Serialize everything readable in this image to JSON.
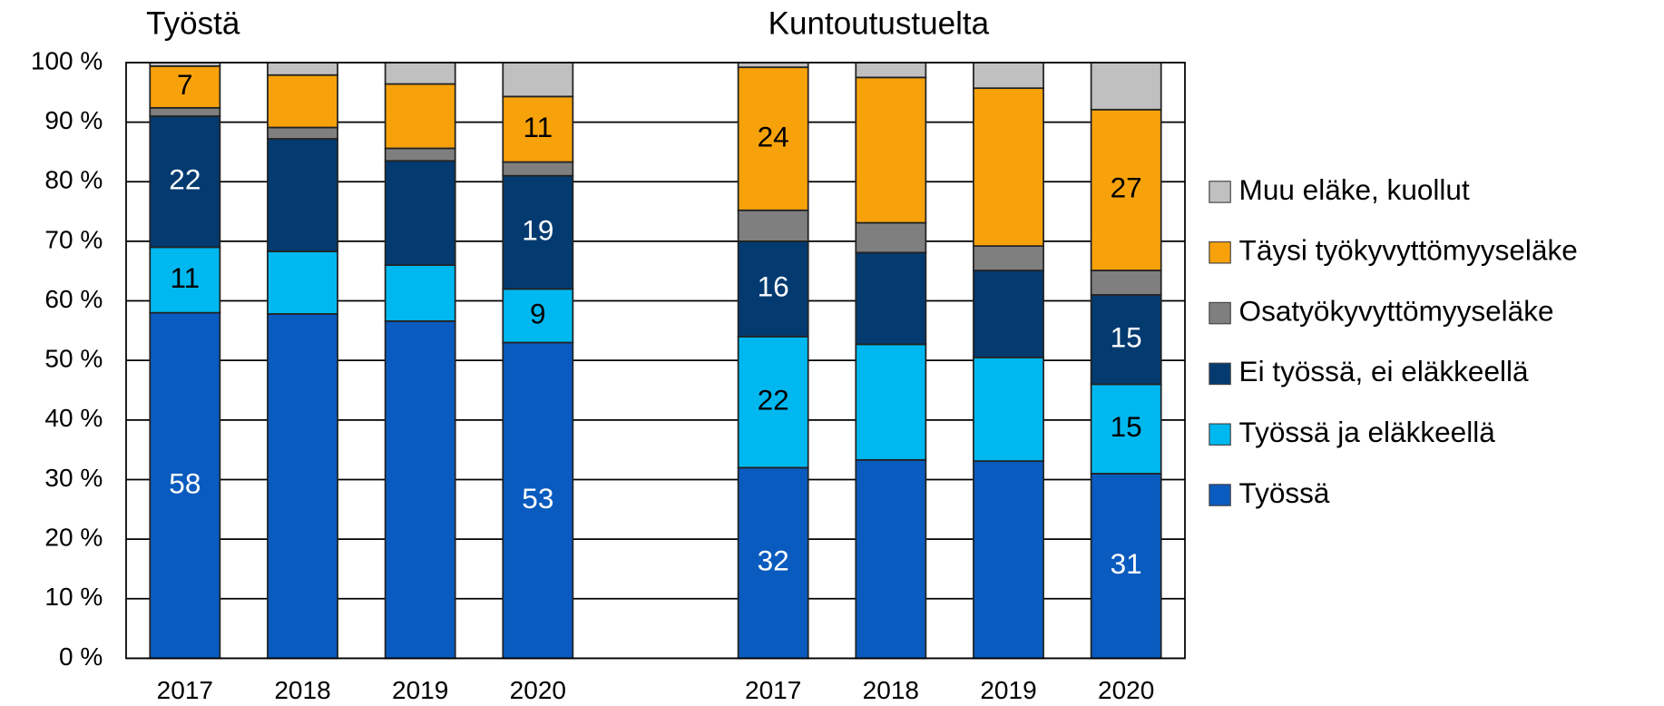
{
  "chart_data": {
    "type": "stacked_bar",
    "annotations": [
      "Työstä",
      "Kuntoutustuelta"
    ],
    "categories": [
      "2017",
      "2018",
      "2019",
      "2020",
      null,
      "2017",
      "2018",
      "2019",
      "2020"
    ],
    "series": [
      {
        "name": "Työssä",
        "color": "#0a5bbf",
        "values": [
          58,
          57.8,
          56.6,
          53,
          null,
          32,
          33.3,
          33.1,
          31
        ],
        "value_labels": [
          "58",
          null,
          null,
          "53",
          null,
          "32",
          null,
          null,
          "31"
        ]
      },
      {
        "name": "Työssä ja eläkkeellä",
        "color": "#00b8f0",
        "values": [
          11,
          10.5,
          9.4,
          9,
          null,
          22,
          19.4,
          17.4,
          15
        ],
        "value_labels": [
          "11",
          null,
          null,
          "9",
          null,
          "22",
          null,
          null,
          "15"
        ]
      },
      {
        "name": "Ei työssä, ei eläkkeellä",
        "color": "#033a70",
        "values": [
          22,
          18.9,
          17.5,
          19,
          null,
          16,
          15.4,
          14.6,
          15
        ],
        "value_labels": [
          "22",
          null,
          null,
          "19",
          null,
          "16",
          null,
          null,
          "15"
        ]
      },
      {
        "name": "Osatyökyvyttömyyseläke",
        "color": "#7f7f7f",
        "values": [
          1.4,
          1.9,
          2.1,
          2.3,
          null,
          5.2,
          5.0,
          4.1,
          4.1
        ]
      },
      {
        "name": "Täysi työkyvyttömyyseläke",
        "color": "#f8a20b",
        "values": [
          7,
          8.8,
          10.8,
          11,
          null,
          24,
          24.4,
          26.5,
          27
        ],
        "value_labels": [
          "7",
          null,
          null,
          "11",
          null,
          "24",
          null,
          null,
          "27"
        ]
      },
      {
        "name": "Muu eläke, kuollut",
        "color": "#c0c0c0",
        "values": [
          0.6,
          2.1,
          3.6,
          5.7,
          null,
          0.8,
          2.5,
          4.3,
          7.9
        ]
      }
    ],
    "ylim": [
      0,
      100
    ],
    "yticks": [
      {
        "value": 0,
        "label": "0 %"
      },
      {
        "value": 10,
        "label": "10 %"
      },
      {
        "value": 20,
        "label": "20 %"
      },
      {
        "value": 30,
        "label": "30 %"
      },
      {
        "value": 40,
        "label": "40 %"
      },
      {
        "value": 50,
        "label": "50 %"
      },
      {
        "value": 60,
        "label": "60 %"
      },
      {
        "value": 70,
        "label": "70 %"
      },
      {
        "value": 80,
        "label": "80 %"
      },
      {
        "value": 90,
        "label": "90 %"
      },
      {
        "value": 100,
        "label": "100 %"
      }
    ],
    "grid": true,
    "legend": "right"
  }
}
